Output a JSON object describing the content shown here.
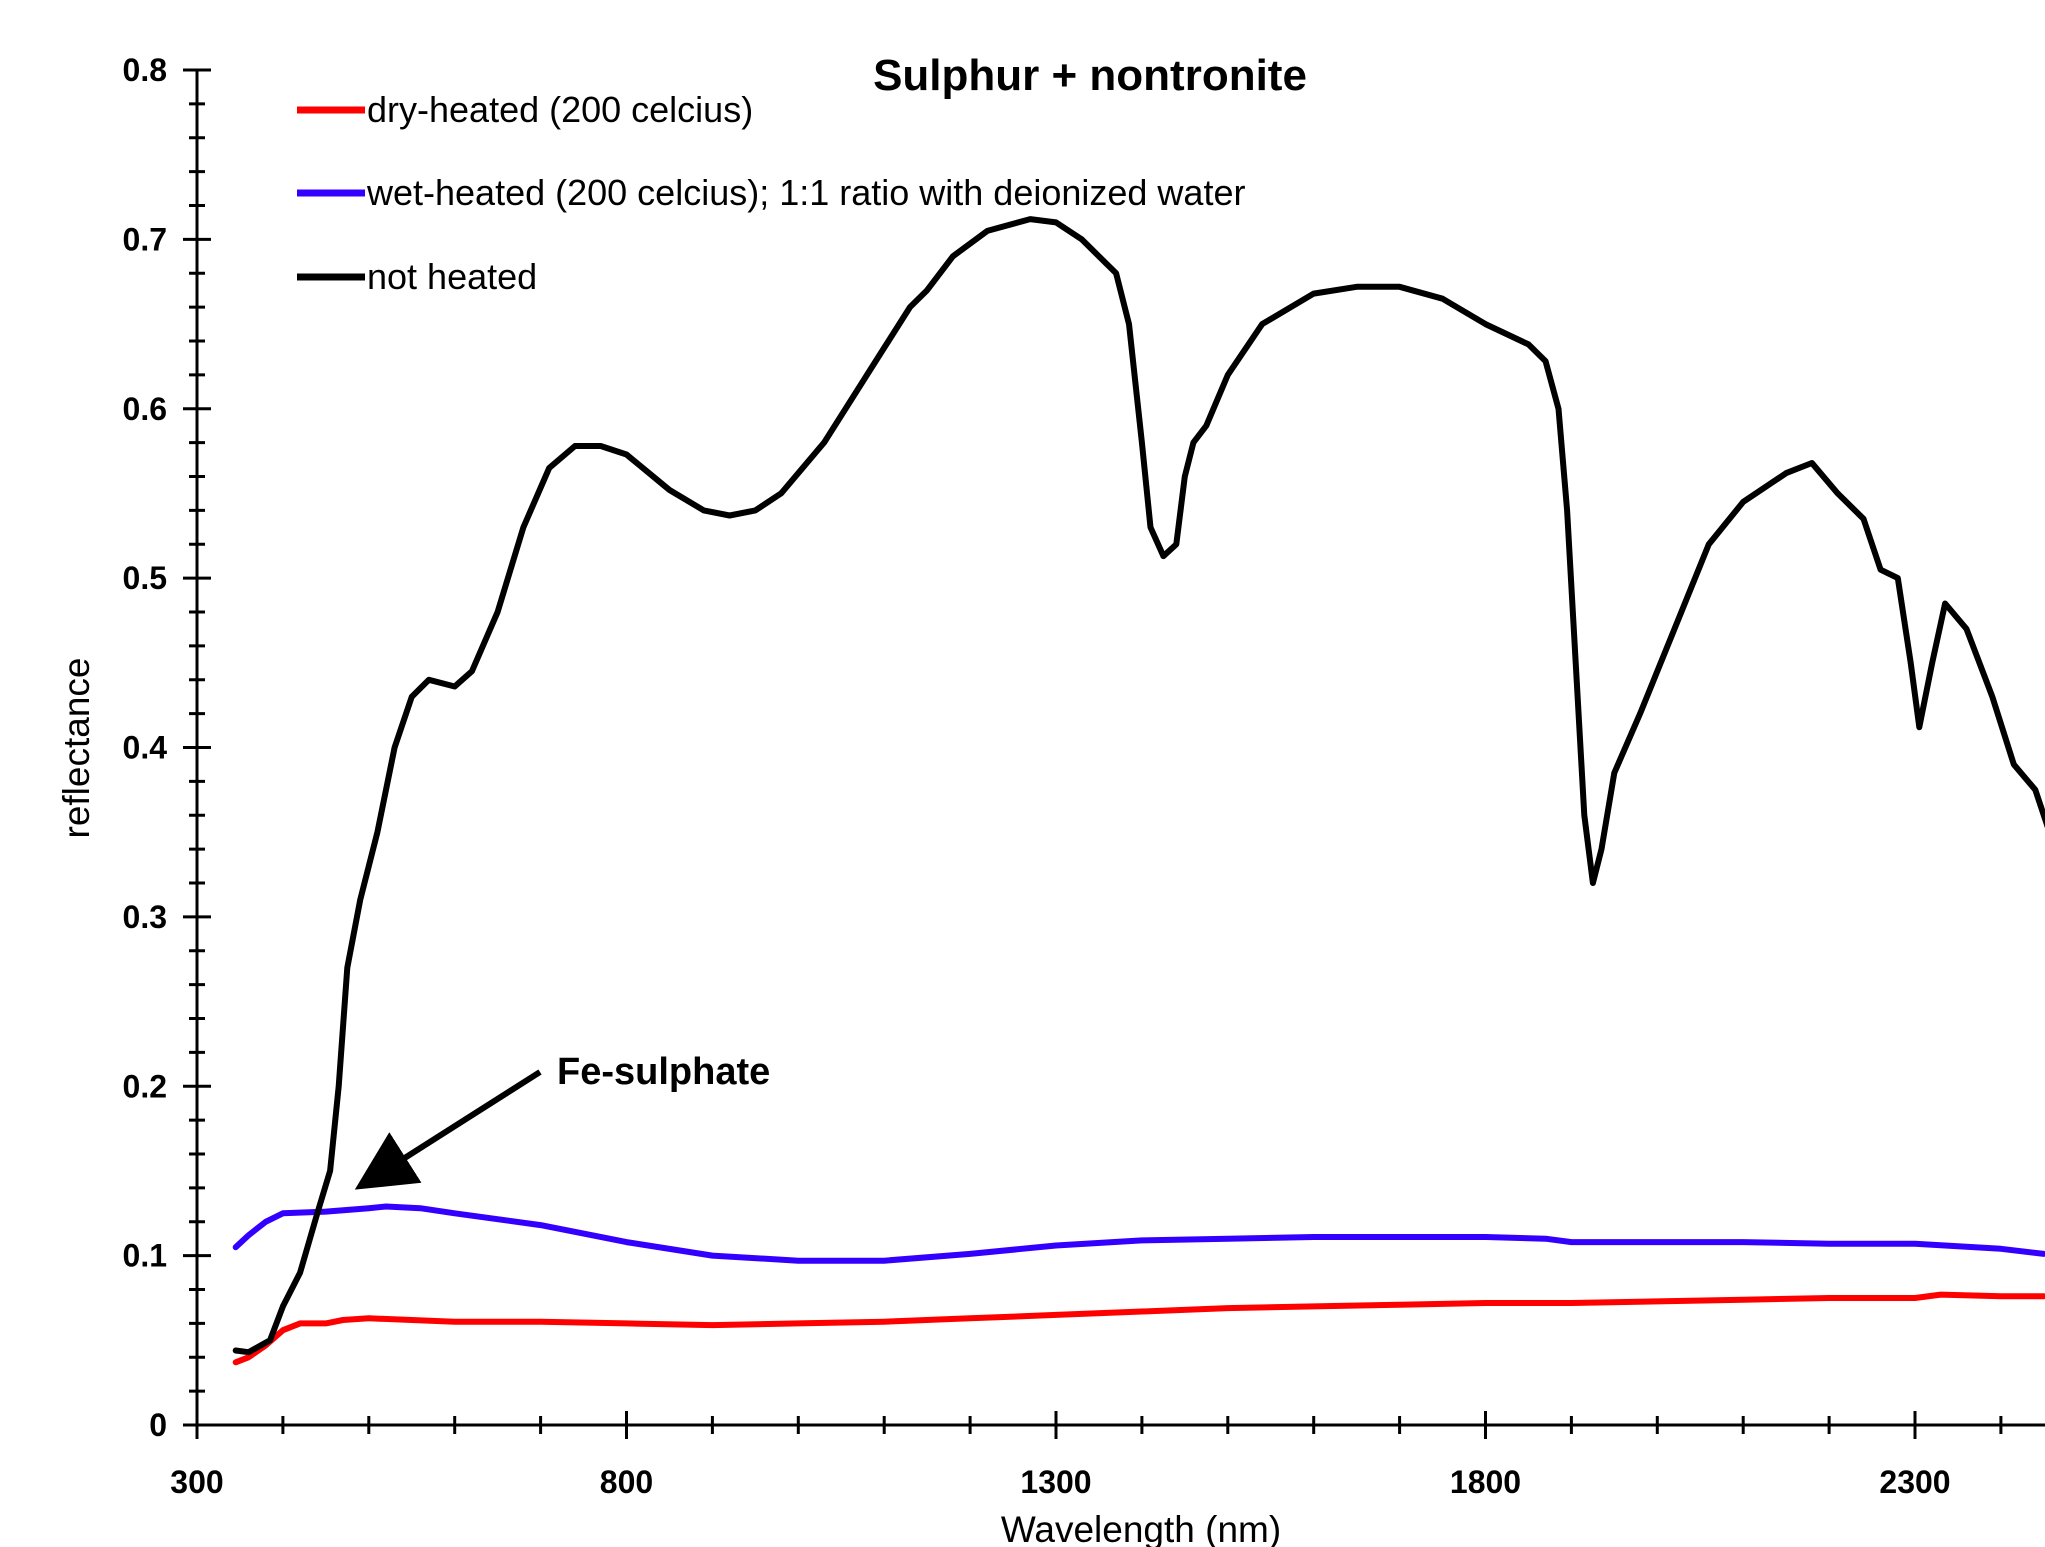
{
  "chart_data": {
    "type": "line",
    "title": "Sulphur + nontronite",
    "xlabel": "Wavelength (nm)",
    "ylabel": "reflectance",
    "xlim": [
      300,
      2450
    ],
    "ylim": [
      0,
      0.8
    ],
    "xticks": [
      300,
      800,
      1300,
      1800,
      2300
    ],
    "xtick_labels": [
      "300",
      "800",
      "1300",
      "1800",
      "2300"
    ],
    "yticks": [
      0,
      0.1,
      0.2,
      0.3,
      0.4,
      0.5,
      0.6,
      0.7,
      0.8
    ],
    "ytick_labels": [
      "0",
      "0.1",
      "0.2",
      "0.3",
      "0.4",
      "0.5",
      "0.6",
      "0.7",
      "0.8"
    ],
    "grid": false,
    "legend_position": "top-left",
    "annotation": {
      "text": "Fe-sulphate",
      "x": 500,
      "y": 0.14
    },
    "series": [
      {
        "name": "dry-heated (200 celcius)",
        "color": "#ff0000",
        "points": [
          [
            345,
            0.037
          ],
          [
            360,
            0.04
          ],
          [
            380,
            0.047
          ],
          [
            400,
            0.056
          ],
          [
            420,
            0.06
          ],
          [
            450,
            0.06
          ],
          [
            470,
            0.062
          ],
          [
            500,
            0.063
          ],
          [
            550,
            0.062
          ],
          [
            600,
            0.061
          ],
          [
            700,
            0.061
          ],
          [
            800,
            0.06
          ],
          [
            900,
            0.059
          ],
          [
            1000,
            0.06
          ],
          [
            1100,
            0.061
          ],
          [
            1200,
            0.063
          ],
          [
            1300,
            0.065
          ],
          [
            1400,
            0.067
          ],
          [
            1500,
            0.069
          ],
          [
            1600,
            0.07
          ],
          [
            1700,
            0.071
          ],
          [
            1800,
            0.072
          ],
          [
            1900,
            0.072
          ],
          [
            2000,
            0.073
          ],
          [
            2100,
            0.074
          ],
          [
            2200,
            0.075
          ],
          [
            2300,
            0.075
          ],
          [
            2330,
            0.077
          ],
          [
            2400,
            0.076
          ],
          [
            2450,
            0.076
          ]
        ]
      },
      {
        "name": "wet-heated (200 celcius); 1:1 ratio with deionized water",
        "color": "#3300ff",
        "points": [
          [
            345,
            0.105
          ],
          [
            360,
            0.112
          ],
          [
            380,
            0.12
          ],
          [
            400,
            0.125
          ],
          [
            450,
            0.126
          ],
          [
            500,
            0.128
          ],
          [
            520,
            0.129
          ],
          [
            560,
            0.128
          ],
          [
            600,
            0.125
          ],
          [
            700,
            0.118
          ],
          [
            800,
            0.108
          ],
          [
            900,
            0.1
          ],
          [
            1000,
            0.097
          ],
          [
            1100,
            0.097
          ],
          [
            1200,
            0.101
          ],
          [
            1300,
            0.106
          ],
          [
            1400,
            0.109
          ],
          [
            1500,
            0.11
          ],
          [
            1600,
            0.111
          ],
          [
            1700,
            0.111
          ],
          [
            1800,
            0.111
          ],
          [
            1870,
            0.11
          ],
          [
            1900,
            0.108
          ],
          [
            2000,
            0.108
          ],
          [
            2100,
            0.108
          ],
          [
            2200,
            0.107
          ],
          [
            2300,
            0.107
          ],
          [
            2400,
            0.104
          ],
          [
            2450,
            0.101
          ]
        ]
      },
      {
        "name": "not heated",
        "color": "#000000",
        "points": [
          [
            345,
            0.044
          ],
          [
            360,
            0.043
          ],
          [
            385,
            0.05
          ],
          [
            400,
            0.07
          ],
          [
            420,
            0.09
          ],
          [
            440,
            0.125
          ],
          [
            455,
            0.15
          ],
          [
            465,
            0.2
          ],
          [
            475,
            0.27
          ],
          [
            490,
            0.31
          ],
          [
            510,
            0.35
          ],
          [
            530,
            0.4
          ],
          [
            550,
            0.43
          ],
          [
            570,
            0.44
          ],
          [
            600,
            0.436
          ],
          [
            620,
            0.445
          ],
          [
            650,
            0.48
          ],
          [
            680,
            0.53
          ],
          [
            710,
            0.565
          ],
          [
            740,
            0.578
          ],
          [
            770,
            0.578
          ],
          [
            800,
            0.573
          ],
          [
            850,
            0.552
          ],
          [
            890,
            0.54
          ],
          [
            920,
            0.537
          ],
          [
            950,
            0.54
          ],
          [
            980,
            0.55
          ],
          [
            1030,
            0.58
          ],
          [
            1080,
            0.62
          ],
          [
            1130,
            0.66
          ],
          [
            1150,
            0.67
          ],
          [
            1180,
            0.69
          ],
          [
            1220,
            0.705
          ],
          [
            1270,
            0.712
          ],
          [
            1300,
            0.71
          ],
          [
            1330,
            0.7
          ],
          [
            1370,
            0.68
          ],
          [
            1385,
            0.65
          ],
          [
            1400,
            0.58
          ],
          [
            1410,
            0.53
          ],
          [
            1425,
            0.513
          ],
          [
            1440,
            0.52
          ],
          [
            1450,
            0.56
          ],
          [
            1460,
            0.58
          ],
          [
            1475,
            0.59
          ],
          [
            1500,
            0.62
          ],
          [
            1540,
            0.65
          ],
          [
            1600,
            0.668
          ],
          [
            1650,
            0.672
          ],
          [
            1700,
            0.672
          ],
          [
            1750,
            0.665
          ],
          [
            1800,
            0.65
          ],
          [
            1850,
            0.638
          ],
          [
            1870,
            0.628
          ],
          [
            1885,
            0.6
          ],
          [
            1895,
            0.54
          ],
          [
            1905,
            0.45
          ],
          [
            1915,
            0.36
          ],
          [
            1925,
            0.32
          ],
          [
            1935,
            0.34
          ],
          [
            1950,
            0.385
          ],
          [
            1980,
            0.42
          ],
          [
            2020,
            0.47
          ],
          [
            2060,
            0.52
          ],
          [
            2100,
            0.545
          ],
          [
            2150,
            0.562
          ],
          [
            2180,
            0.568
          ],
          [
            2210,
            0.55
          ],
          [
            2240,
            0.535
          ],
          [
            2260,
            0.505
          ],
          [
            2280,
            0.5
          ],
          [
            2295,
            0.45
          ],
          [
            2305,
            0.412
          ],
          [
            2320,
            0.45
          ],
          [
            2335,
            0.485
          ],
          [
            2360,
            0.47
          ],
          [
            2390,
            0.43
          ],
          [
            2415,
            0.39
          ],
          [
            2440,
            0.375
          ],
          [
            2450,
            0.36
          ],
          [
            2460,
            0.345
          ]
        ]
      }
    ]
  }
}
